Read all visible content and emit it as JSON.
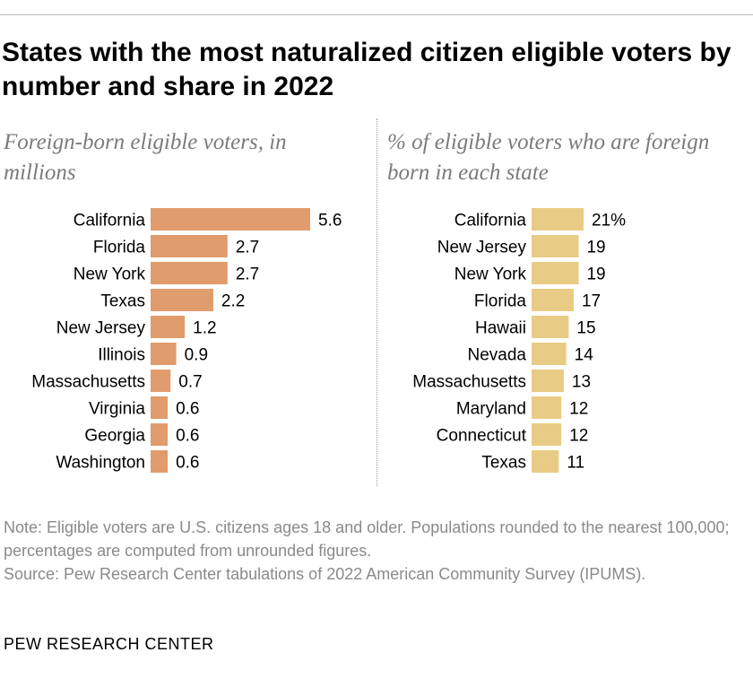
{
  "title": "States with the most naturalized citizen eligible voters by number and share in 2022",
  "note": "Note: Eligible voters are U.S. citizens ages 18 and older. Populations rounded to the nearest 100,000; percentages are computed from unrounded figures.",
  "source": "Source: Pew Research Center tabulations of 2022 American Community Survey (IPUMS).",
  "footer": "PEW RESEARCH CENTER",
  "chart_data": [
    {
      "type": "bar",
      "orientation": "horizontal",
      "title": "Foreign-born eligible voters, in millions",
      "categories": [
        "California",
        "Florida",
        "New York",
        "Texas",
        "New Jersey",
        "Illinois",
        "Massachusetts",
        "Virginia",
        "Georgia",
        "Washington"
      ],
      "values": [
        5.6,
        2.7,
        2.7,
        2.2,
        1.2,
        0.9,
        0.7,
        0.6,
        0.6,
        0.6
      ],
      "labels": [
        "5.6",
        "2.7",
        "2.7",
        "2.2",
        "1.2",
        "0.9",
        "0.7",
        "0.6",
        "0.6",
        "0.6"
      ],
      "color": "#e09c6c",
      "xlim": [
        0,
        5.6
      ]
    },
    {
      "type": "bar",
      "orientation": "horizontal",
      "title": "% of eligible voters who are foreign born in each state",
      "categories": [
        "California",
        "New Jersey",
        "New York",
        "Florida",
        "Hawaii",
        "Nevada",
        "Massachusetts",
        "Maryland",
        "Connecticut",
        "Texas"
      ],
      "values": [
        21,
        19,
        19,
        17,
        15,
        14,
        13,
        12,
        12,
        11
      ],
      "labels": [
        "21%",
        "19",
        "19",
        "17",
        "15",
        "14",
        "13",
        "12",
        "12",
        "11"
      ],
      "color": "#e8cc85",
      "xlim": [
        0,
        21
      ]
    }
  ]
}
